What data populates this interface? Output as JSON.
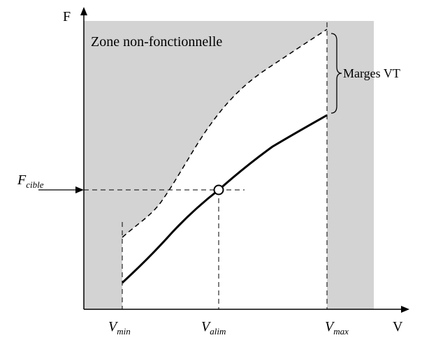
{
  "axes": {
    "y_label": "F",
    "x_label": "V"
  },
  "zone_label": "Zone non-fonctionnelle",
  "margin_label": "Marges VT",
  "target": {
    "main": "F",
    "sub": "cible"
  },
  "x_marks": [
    {
      "main": "V",
      "sub": "min"
    },
    {
      "main": "V",
      "sub": "alim"
    },
    {
      "main": "V",
      "sub": "max"
    }
  ]
}
